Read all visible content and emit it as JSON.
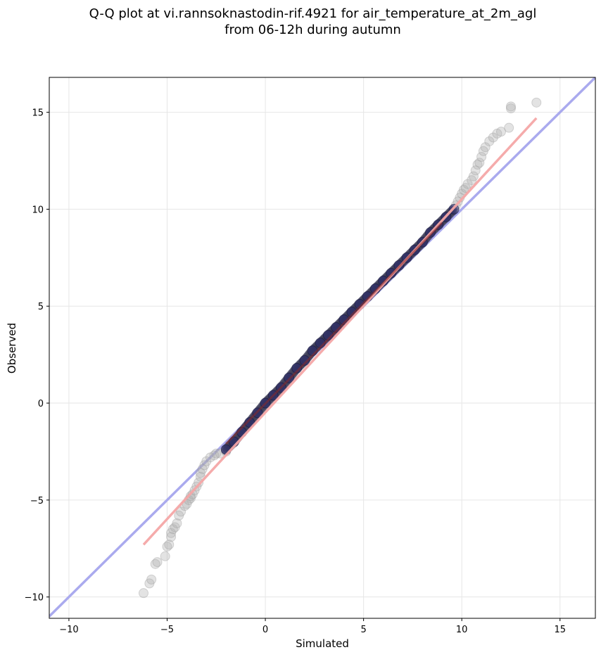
{
  "chart_data": {
    "type": "scatter",
    "title": "Q-Q plot at vi.rannsoknastodin-rif.4921 for air_temperature_at_2m_agl\nfrom 06-12h during autumn",
    "xlabel": "Simulated",
    "ylabel": "Observed",
    "xlim": [
      -11.0,
      16.8
    ],
    "ylim": [
      -11.1,
      16.8
    ],
    "xticks": [
      -10,
      -5,
      0,
      5,
      10,
      15
    ],
    "yticks": [
      -10,
      -5,
      0,
      5,
      10,
      15
    ],
    "xtick_labels": [
      "−10",
      "−5",
      "0",
      "5",
      "10",
      "15"
    ],
    "ytick_labels": [
      "−10",
      "−5",
      "0",
      "5",
      "10",
      "15"
    ],
    "grid": true,
    "colors": {
      "identity_line": "#aaaaee",
      "fit_line": "#f4a6a6",
      "tail_points": "#b0b0b0",
      "core_points": "#2a2a6a",
      "core_highlight": "#8a2a2a"
    },
    "identity_line": {
      "x": [
        -11.0,
        16.8
      ],
      "y": [
        -11.0,
        16.8
      ]
    },
    "fit_line": {
      "x": [
        -6.2,
        13.8
      ],
      "y": [
        -7.3,
        14.7
      ]
    },
    "tail_points": {
      "x": [
        -6.2,
        -5.9,
        -5.8,
        -5.6,
        -5.5,
        -5.1,
        -5.0,
        -4.9,
        -4.8,
        -4.8,
        -4.7,
        -4.6,
        -4.5,
        -4.4,
        -4.3,
        -4.1,
        -4.0,
        -3.9,
        -3.8,
        -3.8,
        -3.7,
        -3.6,
        -3.5,
        -3.4,
        -3.3,
        -3.3,
        -3.2,
        -3.1,
        -3.0,
        -2.8,
        -2.6,
        -2.5,
        -2.3,
        -2.0,
        9.7,
        9.8,
        9.9,
        10.0,
        10.1,
        10.2,
        10.3,
        10.5,
        10.6,
        10.7,
        10.8,
        10.9,
        11.0,
        11.1,
        11.2,
        11.4,
        11.6,
        11.8,
        12.0,
        12.4,
        12.5,
        12.5,
        13.8
      ],
      "y": [
        -9.8,
        -9.3,
        -9.1,
        -8.3,
        -8.2,
        -7.9,
        -7.4,
        -7.3,
        -6.9,
        -6.7,
        -6.5,
        -6.4,
        -6.2,
        -5.8,
        -5.6,
        -5.3,
        -5.2,
        -5.0,
        -4.8,
        -4.9,
        -4.7,
        -4.5,
        -4.3,
        -4.1,
        -3.8,
        -3.6,
        -3.4,
        -3.2,
        -3.0,
        -2.8,
        -2.7,
        -2.6,
        -2.6,
        -2.5,
        10.2,
        10.4,
        10.6,
        10.8,
        11.0,
        11.1,
        11.3,
        11.5,
        11.7,
        12.0,
        12.3,
        12.4,
        12.7,
        13.0,
        13.2,
        13.5,
        13.7,
        13.9,
        14.0,
        14.2,
        15.2,
        15.3,
        15.5
      ]
    },
    "core_points": {
      "x": [
        -2.0,
        -1.6,
        -1.2,
        -0.8,
        -0.4,
        0.0,
        0.4,
        0.8,
        1.2,
        1.6,
        2.0,
        2.4,
        2.8,
        3.2,
        3.6,
        4.0,
        4.4,
        4.8,
        5.2,
        5.6,
        6.0,
        6.4,
        6.8,
        7.2,
        7.6,
        8.0,
        8.4,
        8.8,
        9.2,
        9.6
      ],
      "y": [
        -2.4,
        -2.0,
        -1.5,
        -1.0,
        -0.5,
        0.0,
        0.4,
        0.8,
        1.3,
        1.8,
        2.2,
        2.7,
        3.1,
        3.5,
        3.9,
        4.3,
        4.7,
        5.1,
        5.5,
        5.9,
        6.3,
        6.7,
        7.1,
        7.5,
        7.9,
        8.3,
        8.8,
        9.2,
        9.6,
        10.0
      ]
    }
  }
}
